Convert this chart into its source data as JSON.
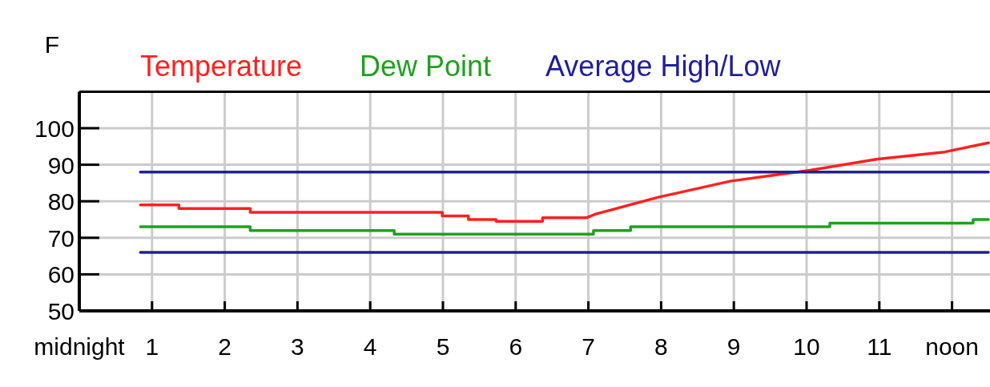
{
  "chart_data": {
    "type": "line",
    "ylabel": "F",
    "xlim": [
      0,
      12.5
    ],
    "ylim": [
      50,
      110
    ],
    "xticks": [
      {
        "value": 0,
        "label": "midnight"
      },
      1,
      2,
      3,
      4,
      5,
      6,
      7,
      8,
      9,
      10,
      11,
      {
        "value": 12,
        "label": "noon"
      }
    ],
    "yticks": [
      50,
      60,
      70,
      80,
      90,
      100
    ],
    "grid": true,
    "legend": "top",
    "line_style": "solid",
    "marker": "none",
    "series": [
      {
        "name": "Temperature",
        "color": "#ff2020",
        "x": [
          0.84,
          1.37,
          1.37,
          2.35,
          2.35,
          4.99,
          4.99,
          5.35,
          5.35,
          5.73,
          5.73,
          6.37,
          6.37,
          6.98,
          7.1,
          7.94,
          8.95,
          9.5,
          10.05,
          10.96,
          11.9,
          12.5
        ],
        "values": [
          79,
          79,
          78,
          78,
          77,
          77,
          76,
          76,
          75,
          75,
          74.5,
          74.5,
          75.5,
          75.5,
          76.5,
          81,
          85.5,
          87,
          88.5,
          91.5,
          93.5,
          96
        ]
      },
      {
        "name": "Dew Point",
        "color": "#20a020",
        "x": [
          0.84,
          2.35,
          2.35,
          4.33,
          4.33,
          7.07,
          7.07,
          7.58,
          7.58,
          10.32,
          10.32,
          12.29,
          12.29,
          12.5
        ],
        "values": [
          73,
          73,
          72,
          72,
          71,
          71,
          72,
          72,
          73,
          73,
          74,
          74,
          75,
          75
        ]
      },
      {
        "name": "Average High/Low",
        "color": "#20209a",
        "x": [
          0.84,
          12.5
        ],
        "values": [
          88,
          88
        ]
      },
      {
        "color": "#20209a",
        "x": [
          0.84,
          12.5
        ],
        "values": [
          66,
          66
        ]
      }
    ]
  }
}
